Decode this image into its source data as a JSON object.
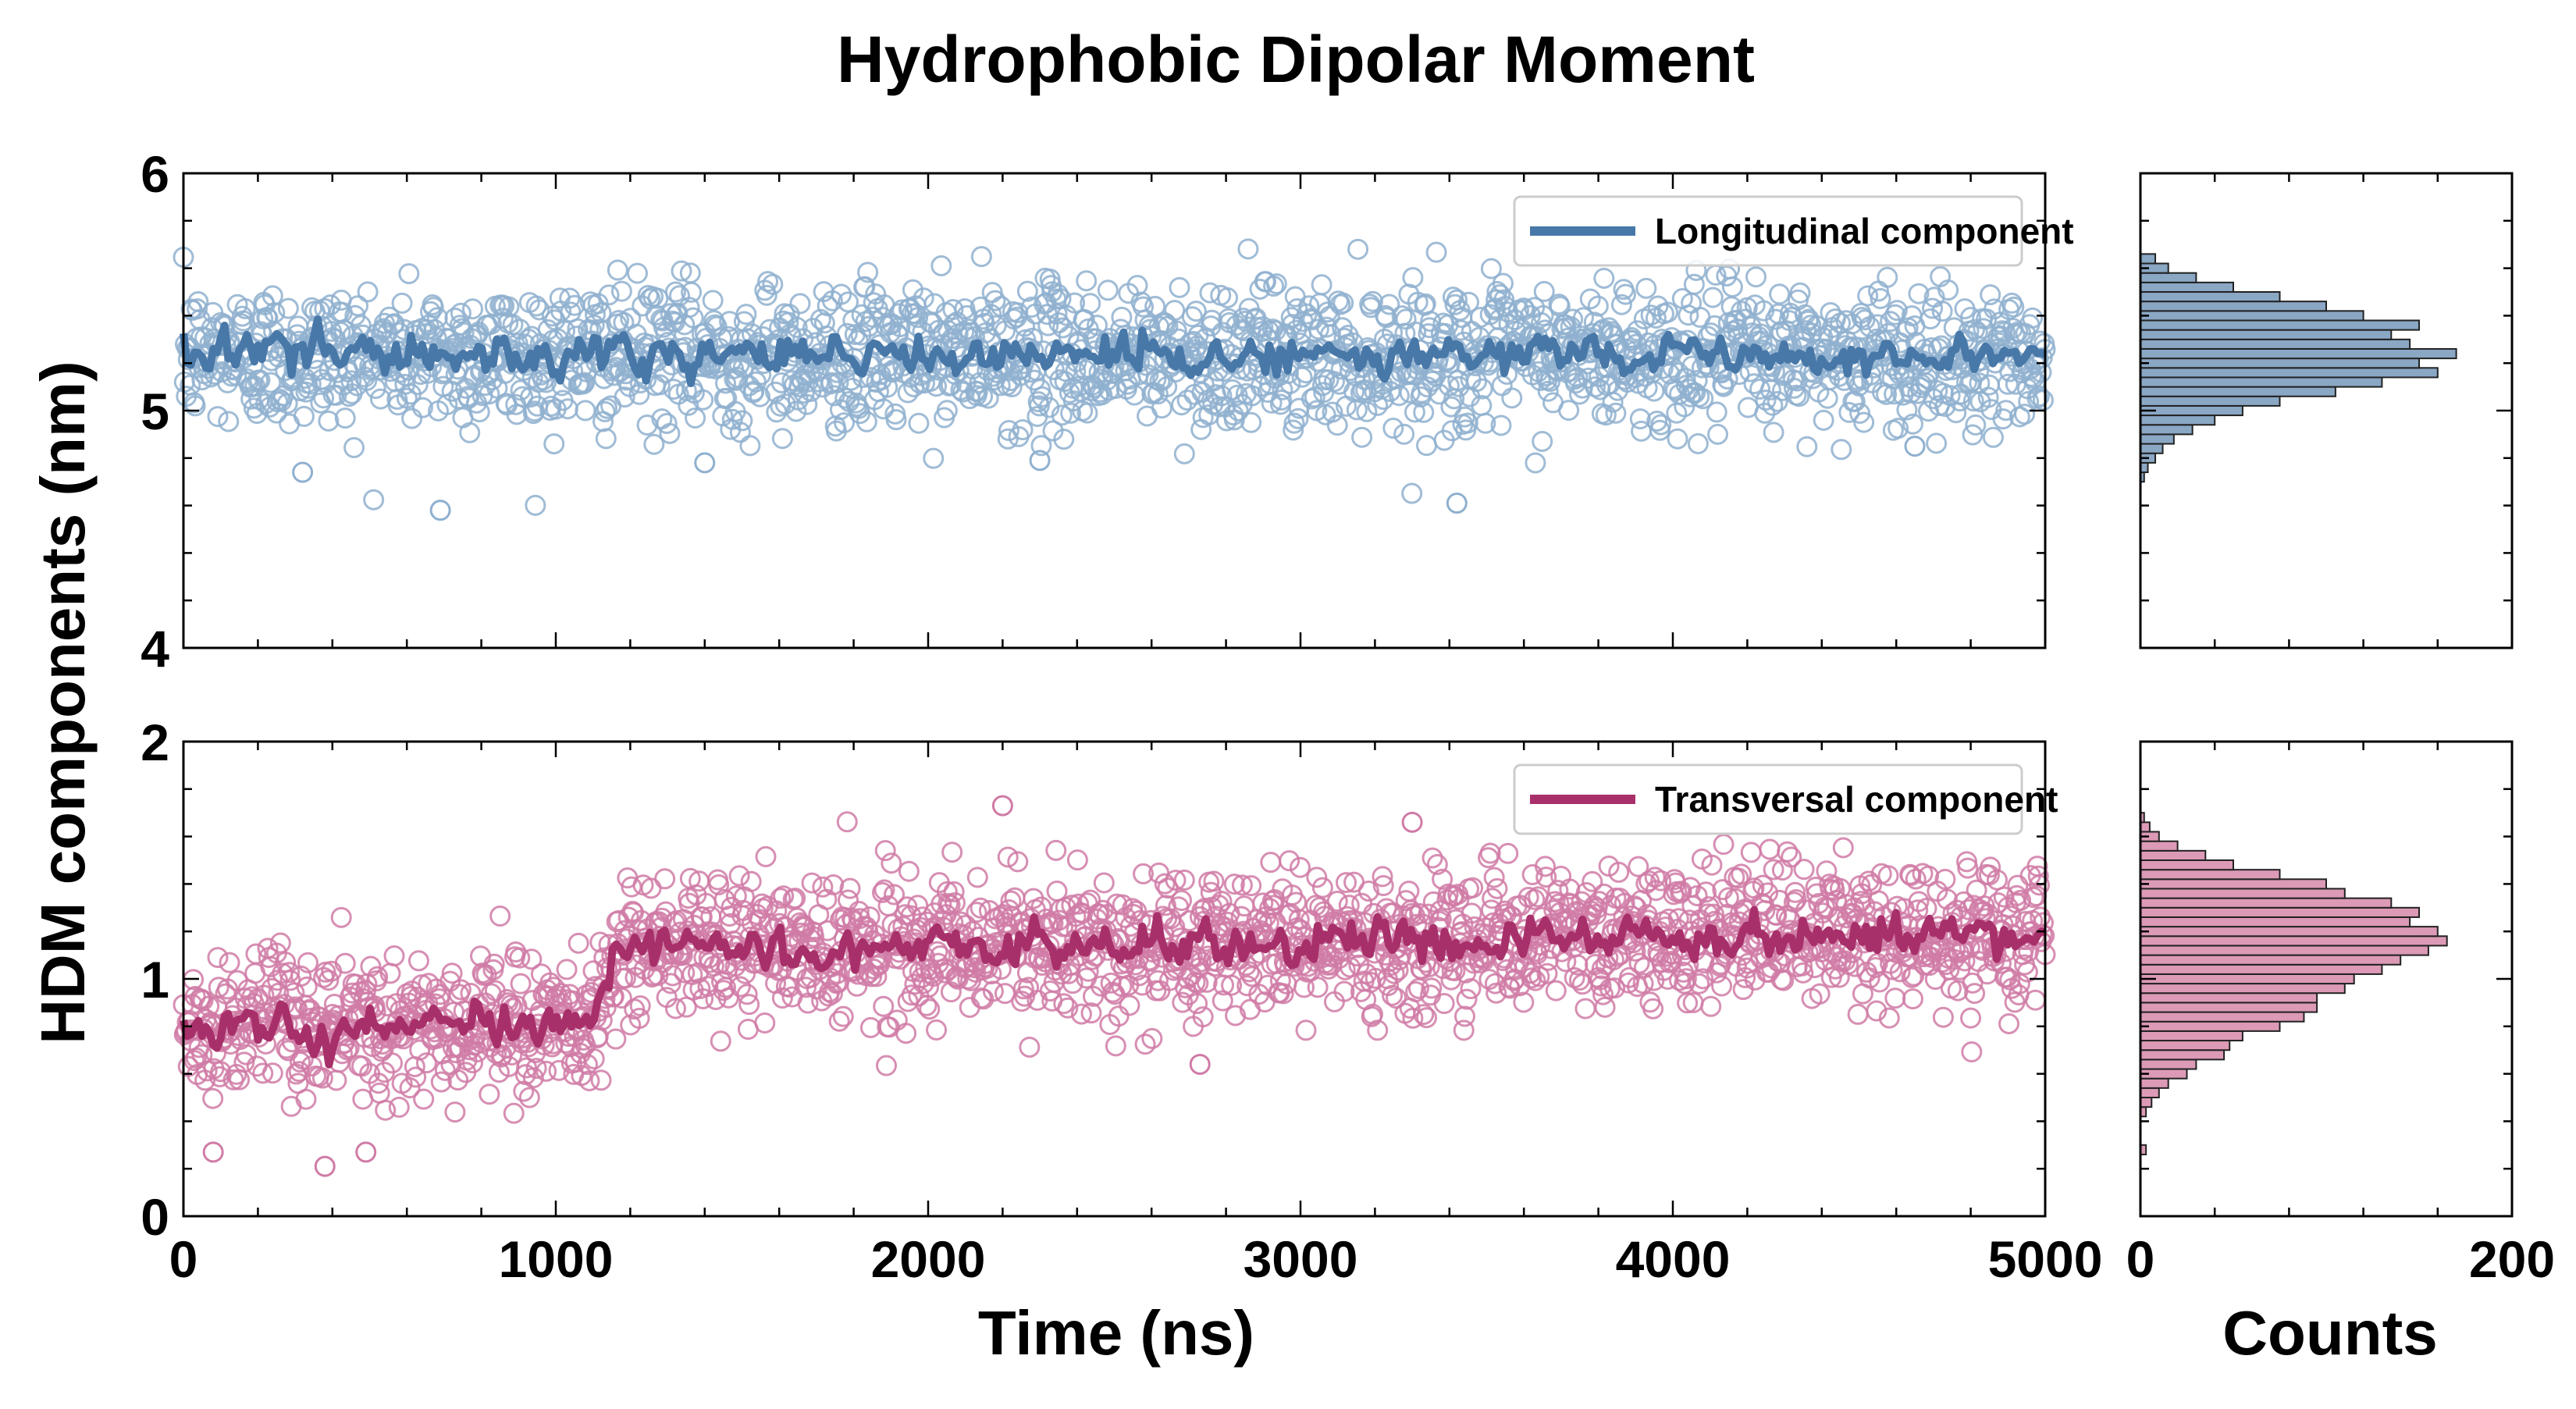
{
  "figure": {
    "title": "Hydrophobic Dipolar Moment",
    "ylabel": "HDM components (nm)",
    "xlabel_time": "Time (ns)",
    "xlabel_counts": "Counts"
  },
  "colors": {
    "longitudinal": "#4878a8",
    "longitudinal_marker": "#8fb0cf",
    "transversal": "#a8306a",
    "transversal_marker": "#d07ba6",
    "hist_long_fill": "#8aa7c4",
    "hist_trans_fill": "#dc9ab7"
  },
  "chart_data": [
    {
      "type": "scatter",
      "panel": "top-time",
      "series": [
        {
          "name": "Longitudinal component",
          "kind": "running-mean-line-with-scatter"
        }
      ],
      "xlim": [
        0,
        5000
      ],
      "ylim": [
        4,
        6
      ],
      "xticks": [
        "0",
        "1000",
        "2000",
        "3000",
        "4000",
        "5000"
      ],
      "yticks": [
        "4",
        "5",
        "6"
      ],
      "legend": "top-right",
      "profile": [
        [
          0,
          5.23
        ],
        [
          5000,
          5.23
        ]
      ],
      "spread": 0.15,
      "line_noise": 0.06,
      "outliers": [
        [
          320,
          4.74
        ],
        [
          690,
          4.58
        ],
        [
          1400,
          4.78
        ],
        [
          2300,
          4.79
        ],
        [
          3420,
          4.61
        ],
        [
          4650,
          4.85
        ]
      ]
    },
    {
      "type": "bar",
      "panel": "top-hist",
      "orientation": "horizontal",
      "xlim": [
        0,
        200
      ],
      "ylim": [
        4,
        6
      ],
      "xticks": [
        "0",
        "200"
      ],
      "bin_edges": [
        4.7,
        4.74,
        4.78,
        4.82,
        4.86,
        4.9,
        4.94,
        4.98,
        5.02,
        5.06,
        5.1,
        5.14,
        5.18,
        5.22,
        5.26,
        5.3,
        5.34,
        5.38,
        5.42,
        5.46,
        5.5,
        5.54,
        5.58,
        5.62,
        5.66
      ],
      "values": [
        2,
        4,
        8,
        12,
        18,
        28,
        40,
        55,
        75,
        105,
        130,
        160,
        150,
        170,
        145,
        135,
        150,
        120,
        100,
        75,
        50,
        30,
        15,
        8
      ]
    },
    {
      "type": "scatter",
      "panel": "bottom-time",
      "series": [
        {
          "name": "Transversal component",
          "kind": "running-mean-line-with-scatter"
        }
      ],
      "xlim": [
        0,
        5000
      ],
      "ylim": [
        0,
        2
      ],
      "xticks": [
        "0",
        "1000",
        "2000",
        "3000",
        "4000",
        "5000"
      ],
      "yticks": [
        "0",
        "1",
        "2"
      ],
      "legend": "top-right",
      "profile": [
        [
          0,
          0.8
        ],
        [
          1100,
          0.8
        ],
        [
          1160,
          1.12
        ],
        [
          5000,
          1.2
        ]
      ],
      "spread": 0.15,
      "line_noise": 0.06,
      "outliers": [
        [
          80,
          0.27
        ],
        [
          380,
          0.21
        ],
        [
          490,
          0.27
        ],
        [
          2200,
          1.73
        ],
        [
          2730,
          0.64
        ],
        [
          3300,
          1.66
        ]
      ]
    },
    {
      "type": "bar",
      "panel": "bottom-hist",
      "orientation": "horizontal",
      "xlim": [
        0,
        200
      ],
      "ylim": [
        0,
        2
      ],
      "xticks": [
        "0",
        "200"
      ],
      "bin_edges": [
        0.26,
        0.3,
        0.34,
        0.38,
        0.42,
        0.46,
        0.5,
        0.54,
        0.58,
        0.62,
        0.66,
        0.7,
        0.74,
        0.78,
        0.82,
        0.86,
        0.9,
        0.94,
        0.98,
        1.02,
        1.06,
        1.1,
        1.14,
        1.18,
        1.22,
        1.26,
        1.3,
        1.34,
        1.38,
        1.42,
        1.46,
        1.5,
        1.54,
        1.58,
        1.62,
        1.66,
        1.7
      ],
      "values": [
        3,
        0,
        0,
        0,
        3,
        6,
        10,
        15,
        25,
        30,
        45,
        48,
        55,
        75,
        88,
        95,
        95,
        110,
        115,
        130,
        140,
        155,
        165,
        160,
        145,
        150,
        135,
        110,
        100,
        75,
        50,
        35,
        20,
        10,
        5,
        2
      ]
    }
  ]
}
